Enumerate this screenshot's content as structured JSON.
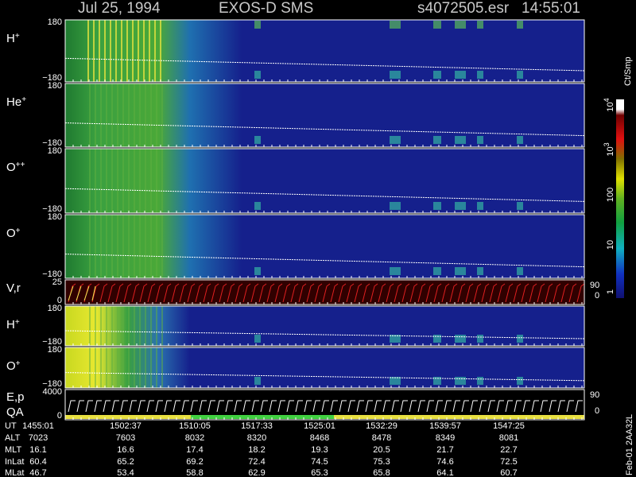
{
  "header": {
    "date": "Jul 25, 1994",
    "instrument": "EXOS-D SMS",
    "file": "s4072505.esr",
    "time": "14:55:01"
  },
  "panels": [
    {
      "label": "H",
      "sup": "+",
      "top": "180",
      "bottom": "−180"
    },
    {
      "label": "He",
      "sup": "+",
      "top": "180",
      "bottom": "−180"
    },
    {
      "label": "O",
      "sup": "++",
      "top": "180",
      "bottom": "−180"
    },
    {
      "label": "O",
      "sup": "+",
      "top": "180",
      "bottom": "−180"
    },
    {
      "label": "V,r",
      "top": "25",
      "bottom": "0",
      "right_top": "90",
      "right_bottom": "0"
    },
    {
      "label": "H",
      "sup": "+",
      "top": "180",
      "bottom": "−180"
    },
    {
      "label": "O",
      "sup": "+",
      "top": "180",
      "bottom": "−180"
    },
    {
      "label": "E,p",
      "label2": "QA",
      "top": "4000",
      "bottom": "0",
      "right_top": "90",
      "right_bottom": "0"
    }
  ],
  "colorbar": {
    "unit": "Ct/Smp",
    "labels": [
      {
        "base": "10",
        "sup": "4"
      },
      {
        "base": "10",
        "sup": "3"
      },
      "100",
      "10",
      "1"
    ]
  },
  "table": {
    "row_labels": [
      "UT",
      "ALT",
      "MLT",
      "InLat",
      "MLat"
    ],
    "rows": [
      [
        "1455:01",
        "1502:37",
        "1510:05",
        "1517:33",
        "1525:01",
        "1532:29",
        "1539:57",
        "1547:25"
      ],
      [
        "7023",
        "7603",
        "8032",
        "8320",
        "8468",
        "8478",
        "8349",
        "8081"
      ],
      [
        "16.1",
        "16.6",
        "17.4",
        "18.2",
        "19.3",
        "20.5",
        "21.7",
        "22.7"
      ],
      [
        "60.4",
        "65.2",
        "69.2",
        "72.4",
        "74.5",
        "75.3",
        "74.6",
        "72.5"
      ],
      [
        "46.7",
        "53.4",
        "58.8",
        "62.9",
        "65.3",
        "65.8",
        "64.1",
        "60.7"
      ]
    ]
  },
  "footer": "Feb-01 2AA32L"
}
